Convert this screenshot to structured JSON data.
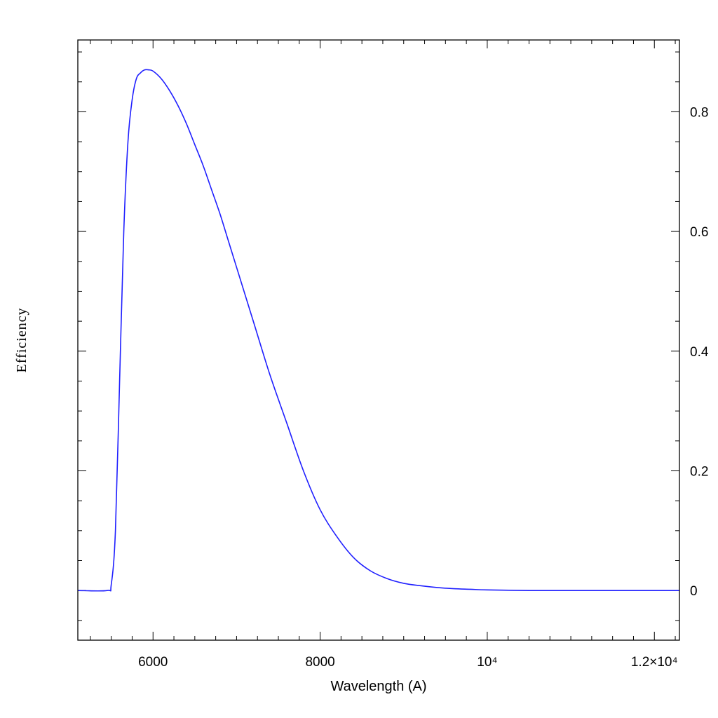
{
  "chart_data": {
    "type": "line",
    "title": "",
    "xlabel": "Wavelength (A)",
    "ylabel": "Efficiency",
    "xlim": [
      5100,
      12300
    ],
    "ylim": [
      -0.083,
      0.92
    ],
    "x_ticks": [
      {
        "value": 6000,
        "label": "6000"
      },
      {
        "value": 8000,
        "label": "8000"
      },
      {
        "value": 10000,
        "label": "10⁴"
      },
      {
        "value": 12000,
        "label": "1.2×10⁴"
      }
    ],
    "x_minor_step": 250,
    "y_ticks": [
      {
        "value": 0,
        "label": "0"
      },
      {
        "value": 0.2,
        "label": "0.2"
      },
      {
        "value": 0.4,
        "label": "0.4"
      },
      {
        "value": 0.6,
        "label": "0.6"
      },
      {
        "value": 0.8,
        "label": "0.8"
      }
    ],
    "y_minor_step": 0.05,
    "y_tick_labels_side": "right",
    "grid": false,
    "series": [
      {
        "color": "#1f1fff",
        "x": [
          5100,
          5450,
          5500,
          5550,
          5600,
          5650,
          5700,
          5750,
          5800,
          5850,
          5900,
          5950,
          6000,
          6100,
          6200,
          6300,
          6400,
          6500,
          6600,
          6700,
          6800,
          6900,
          7000,
          7200,
          7400,
          7600,
          7800,
          8000,
          8200,
          8400,
          8600,
          8800,
          9000,
          9200,
          9400,
          9600,
          9800,
          10000,
          10500,
          11000,
          11500,
          12000,
          12300
        ],
        "y": [
          0.0,
          0.0,
          0.01,
          0.1,
          0.35,
          0.6,
          0.75,
          0.82,
          0.855,
          0.865,
          0.87,
          0.87,
          0.868,
          0.855,
          0.835,
          0.81,
          0.78,
          0.745,
          0.71,
          0.67,
          0.63,
          0.585,
          0.54,
          0.45,
          0.36,
          0.28,
          0.2,
          0.135,
          0.09,
          0.055,
          0.033,
          0.02,
          0.012,
          0.008,
          0.005,
          0.003,
          0.002,
          0.001,
          0.0,
          0.0,
          0.0,
          0.0,
          0.0
        ]
      }
    ]
  }
}
